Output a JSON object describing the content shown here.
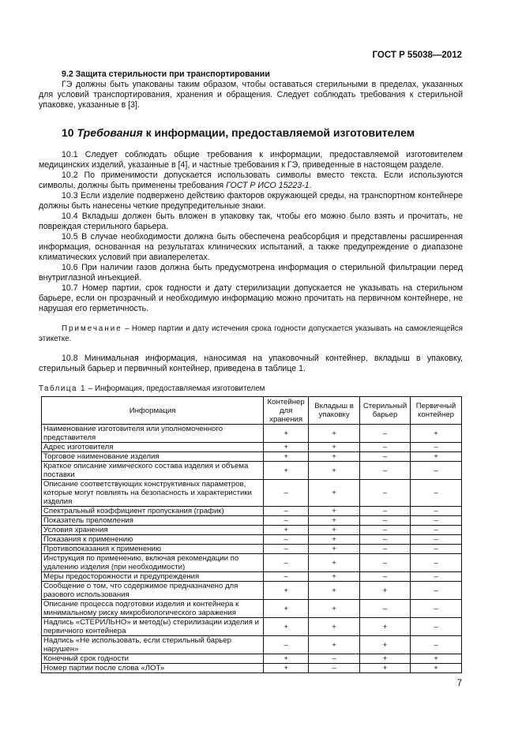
{
  "header": {
    "doc_id": "ГОСТ Р 55038—2012"
  },
  "section_9_2": {
    "heading": "9.2 Защита стерильности при транспортировании",
    "text": "ГЭ должны быть упакованы таким образом, чтобы оставаться стерильными в пределах, указанных для условий транспортирования, хранения и обращения. Следует  соблюдать требования к стерильной упаковке, указанные в [3]."
  },
  "section_10": {
    "heading_prefix": "10 ",
    "heading_italic": "Требования",
    "heading_rest": " к информации, предоставляемой изготовителем",
    "paragraphs": [
      {
        "text": "10.1 Следует соблюдать общие требования к информации, предоставляемой изготовителем медицинских изделий, указанные в [4], и частные требования к ГЭ, приведенные в настоящем разделе."
      },
      {
        "text": "10.2 По применимости допускается использовать символы вместо текста. Если используются символы, должны быть применены требования ",
        "italic": "ГОСТ Р ИСО 15223-1",
        "tail": "."
      },
      {
        "text": "10.3 Если изделие подвержено действию факторов окружающей среды, на транспортном контейнере должны быть нанесены четкие предупредительные знаки."
      },
      {
        "text": "10.4 Вкладыш должен быть вложен в упаковку так, чтобы его можно было взять и прочитать, не повреждая стерильного барьера."
      },
      {
        "text": "10.5 В случае необходимости должна быть обеспечена реабсорбция и представлены расширенная информация, основанная на результатах клинических испытаний, а также предупреждение о диапазоне климатических условий при авиаперелетах."
      },
      {
        "text": "10.6 При наличии газов должна быть предусмотрена информация о стерильной фильтрации перед внутриглазной инъекцией."
      },
      {
        "text": "10.7 Номер партии, срок годности и дату стерилизации допускается не указывать на стерильном барьере, если он прозрачный и необходимую информацию можно прочитать на первичном контейнере, не нарушая его герметичность."
      }
    ],
    "note_label": "Примечание",
    "note_text": " – Номер партии и дату истечения срока годности допускается указывать на самоклеящейся этикетке.",
    "para_10_8": "10.8 Минимальная информация, наносимая на упаковочный контейнер, вкладыш в упаковку, стерильный барьер и первичный контейнер, приведена в таблице 1."
  },
  "table": {
    "caption_label": "Таблица 1",
    "caption_text": " – Информация, предоставляемая изготовителем",
    "columns": [
      "Информация",
      "Контейнер для хранения",
      "Вкладыш в упаковку",
      "Стерильный барьер",
      "Первичный контейнер"
    ],
    "rows": [
      [
        "Наименование изготовителя или уполномоченного представителя",
        "+",
        "+",
        "–",
        "+"
      ],
      [
        "Адрес изготовителя",
        "+",
        "+",
        "–",
        "–"
      ],
      [
        "Торговое наименование изделия",
        "+",
        "+",
        "–",
        "+"
      ],
      [
        "Краткое описание химического состава изделия и объема поставки",
        "+",
        "+",
        "–",
        "–"
      ],
      [
        "Описание соответствующих конструктивных параметров, которые могут повлиять на безопасность и характеристики изделия",
        "–",
        "+",
        "–",
        "–"
      ],
      [
        "Спектральный коэффициент пропускания (график)",
        "–",
        "+",
        "–",
        "–"
      ],
      [
        "Показатель преломления",
        "–",
        "+",
        "–",
        "–"
      ],
      [
        "Условия хранения",
        "+",
        "+",
        "–",
        "–"
      ],
      [
        "Показания к применению",
        "–",
        "+",
        "–",
        "–"
      ],
      [
        "Противопоказания к применению",
        "–",
        "+",
        "–",
        "–"
      ],
      [
        "Инструкция по применению, включая рекомендации по удалению изделия (при необходимости)",
        "–",
        "+",
        "–",
        "–"
      ],
      [
        "Меры предосторожности и предупреждения",
        "–",
        "+",
        "–",
        "–"
      ],
      [
        "Сообщение о том, что содержимое предназначено для разового использования",
        "+",
        "+",
        "+",
        "–"
      ],
      [
        "Описание процесса подготовки изделия и контейнера к минимальному риску микробиологического заражения",
        "+",
        "+",
        "–",
        "–"
      ],
      [
        "Надпись «СТЕРИЛЬНО» и метод(ы) стерилизации изделия и первичного контейнера",
        "+",
        "+",
        "+",
        "–"
      ],
      [
        "Надпись «Не использовать, если стерильный барьер нарушен»",
        "–",
        "+",
        "+",
        "–"
      ],
      [
        "Конечный срок годности",
        "+",
        "–",
        "+",
        "+"
      ],
      [
        "Номер партии после слова «ЛОТ»",
        "+",
        "–",
        "+",
        "+"
      ]
    ]
  },
  "footer": {
    "page_number": "7"
  }
}
